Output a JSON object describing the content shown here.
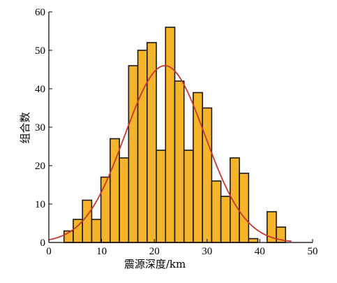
{
  "chart_data": {
    "type": "bar",
    "title": "",
    "xlabel": "震源深度/km",
    "ylabel": "组合数",
    "xlim": [
      0,
      50
    ],
    "ylim": [
      0,
      60
    ],
    "xticks": [
      0,
      10,
      20,
      30,
      40,
      50
    ],
    "yticks": [
      0,
      10,
      20,
      30,
      40,
      50,
      60
    ],
    "bin_width": 2.5,
    "bins": [
      {
        "x": 3.75,
        "value": 3
      },
      {
        "x": 5.5,
        "value": 6
      },
      {
        "x": 7.25,
        "value": 11
      },
      {
        "x": 9.0,
        "value": 6
      },
      {
        "x": 10.75,
        "value": 17
      },
      {
        "x": 12.5,
        "value": 27
      },
      {
        "x": 14.25,
        "value": 22
      },
      {
        "x": 16.0,
        "value": 46
      },
      {
        "x": 17.75,
        "value": 50
      },
      {
        "x": 19.5,
        "value": 52
      },
      {
        "x": 21.25,
        "value": 24
      },
      {
        "x": 23.0,
        "value": 56
      },
      {
        "x": 24.75,
        "value": 42
      },
      {
        "x": 26.5,
        "value": 24
      },
      {
        "x": 28.25,
        "value": 39
      },
      {
        "x": 30.0,
        "value": 35
      },
      {
        "x": 31.75,
        "value": 16
      },
      {
        "x": 33.5,
        "value": 12
      },
      {
        "x": 35.25,
        "value": 22
      },
      {
        "x": 37.0,
        "value": 18
      },
      {
        "x": 38.75,
        "value": 1
      },
      {
        "x": 42.25,
        "value": 8
      },
      {
        "x": 44.0,
        "value": 4
      }
    ],
    "fit_curve": {
      "type": "normal",
      "mean": 22,
      "sd": 7.6,
      "peak": 46,
      "x_from": 0,
      "x_to": 46
    },
    "grid": false,
    "legend": "none",
    "colors": {
      "bar_fill": "#F6B42A",
      "bar_stroke": "#1a1a1a",
      "curve": "#C8372B",
      "axis": "#000000"
    }
  }
}
